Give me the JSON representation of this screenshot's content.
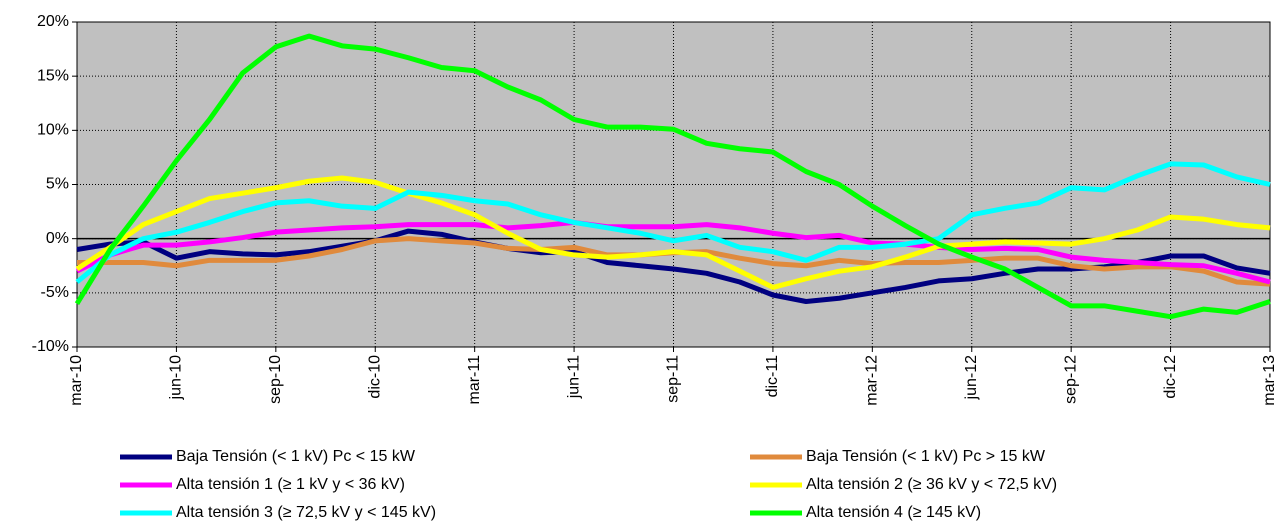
{
  "chart_data": {
    "type": "line",
    "categories": [
      "mar-10",
      null,
      null,
      "jun-10",
      null,
      null,
      "sep-10",
      null,
      null,
      "dic-10",
      null,
      null,
      "mar-11",
      null,
      null,
      "jun-11",
      null,
      null,
      "sep-11",
      null,
      null,
      "dic-11",
      null,
      null,
      "mar-12",
      null,
      null,
      "jun-12",
      null,
      null,
      "sep-12",
      null,
      null,
      "dic-12",
      null,
      null,
      "mar-13"
    ],
    "ylim": [
      -10,
      20
    ],
    "yticks": [
      {
        "value": -10,
        "label": "-10%"
      },
      {
        "value": -5,
        "label": "-5%"
      },
      {
        "value": 0,
        "label": "0%"
      },
      {
        "value": 5,
        "label": "5%"
      },
      {
        "value": 10,
        "label": "10%"
      },
      {
        "value": 15,
        "label": "15%"
      },
      {
        "value": 20,
        "label": "20%"
      }
    ],
    "grid": true,
    "series": [
      {
        "name": "Baja Tensión (< 1 kV) Pc < 15 kW",
        "color": "#000080",
        "values": [
          -1,
          -0.5,
          -0.3,
          -1.8,
          -1.2,
          -1.4,
          -1.5,
          -1.2,
          -0.7,
          -0.2,
          0.7,
          0.4,
          -0.3,
          -0.9,
          -1.3,
          -1.2,
          -2.2,
          -2.5,
          -2.8,
          -3.2,
          -4,
          -5.2,
          -5.8,
          -5.5,
          -5,
          -4.5,
          -3.9,
          -3.7,
          -3.2,
          -2.8,
          -2.8,
          -2.6,
          -2.2,
          -1.6,
          -1.6,
          -2.7,
          -3.2
        ]
      },
      {
        "name": "Baja Tensión (< 1 kV) Pc > 15 kW",
        "color": "#e08a3c",
        "values": [
          -2.2,
          -2.2,
          -2.2,
          -2.5,
          -2,
          -2,
          -2,
          -1.6,
          -1,
          -0.2,
          0,
          -0.2,
          -0.4,
          -0.9,
          -1,
          -0.8,
          -1.5,
          -1.5,
          -1.3,
          -1.2,
          -1.8,
          -2.3,
          -2.5,
          -2,
          -2.3,
          -2.2,
          -2.2,
          -2,
          -1.8,
          -1.8,
          -2.5,
          -2.8,
          -2.6,
          -2.6,
          -3,
          -4,
          -4.2
        ]
      },
      {
        "name": "Alta tensión 1 (≥  1 kV y  < 36 kV)",
        "color": "#ff00ff",
        "values": [
          -3,
          -1.5,
          -0.6,
          -0.6,
          -0.3,
          0.1,
          0.6,
          0.8,
          1,
          1.1,
          1.3,
          1.3,
          1.3,
          1,
          1.2,
          1.5,
          1.1,
          1.1,
          1.1,
          1.3,
          1,
          0.5,
          0.1,
          0.3,
          -0.4,
          -0.5,
          -0.8,
          -1,
          -0.9,
          -1,
          -1.7,
          -2,
          -2.2,
          -2.4,
          -2.5,
          -3.2,
          -4
        ]
      },
      {
        "name": "Alta tensión 2 (≥  36 kV y < 72,5 kV)",
        "color": "#ffff00",
        "values": [
          -2.8,
          -0.8,
          1.3,
          2.5,
          3.7,
          4.2,
          4.7,
          5.3,
          5.6,
          5.2,
          4.2,
          3.3,
          2.2,
          0.5,
          -1,
          -1.5,
          -1.7,
          -1.5,
          -1.2,
          -1.5,
          -3,
          -4.5,
          -3.7,
          -3,
          -2.6,
          -1.7,
          -0.7,
          -0.5,
          -0.3,
          -0.4,
          -0.5,
          0,
          0.8,
          2,
          1.8,
          1.3,
          1
        ]
      },
      {
        "name": "Alta tensión 3 (≥ 72,5 kV y < 145 kV)",
        "color": "#00ffff",
        "values": [
          -4,
          -1.5,
          0,
          0.6,
          1.5,
          2.5,
          3.3,
          3.5,
          3,
          2.8,
          4.3,
          4,
          3.5,
          3.2,
          2.2,
          1.5,
          1,
          0.5,
          -0.2,
          0.3,
          -0.8,
          -1.2,
          -2,
          -0.8,
          -0.8,
          -0.5,
          0,
          2.2,
          2.8,
          3.3,
          4.7,
          4.5,
          5.8,
          6.9,
          6.8,
          5.7,
          5
        ]
      },
      {
        "name": "Alta tensión 4 (≥ 145 kV)",
        "color": "#00ff00",
        "values": [
          -6,
          -1,
          3,
          7.2,
          11,
          15.3,
          17.7,
          18.7,
          17.8,
          17.5,
          16.7,
          15.8,
          15.5,
          14,
          12.8,
          11,
          10.3,
          10.3,
          10.1,
          8.8,
          8.3,
          8,
          6.2,
          5,
          3,
          1.2,
          -0.5,
          -1.7,
          -2.8,
          -4.5,
          -6.2,
          -6.2,
          -6.7,
          -7.2,
          -6.5,
          -6.8,
          -5.8
        ]
      }
    ]
  }
}
